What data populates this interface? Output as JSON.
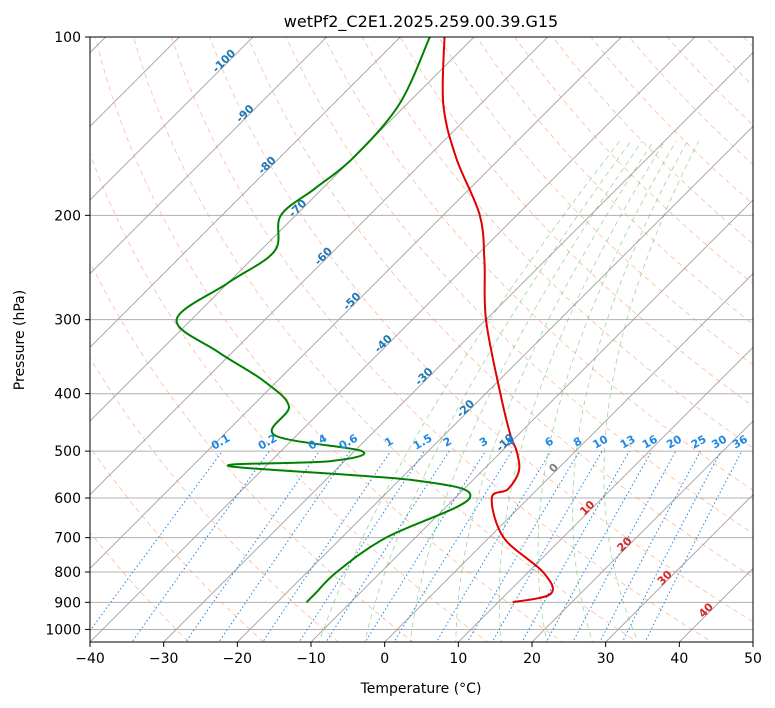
{
  "chart_data": {
    "type": "line",
    "title": "wetPf2_C2E1.2025.259.00.39.G15",
    "xlabel": "Temperature (°C)",
    "ylabel": "Pressure (hPa)",
    "xlim": [
      -40,
      50
    ],
    "ylim": [
      1050,
      100
    ],
    "y_scale": "log",
    "grid": true,
    "x_ticks": [
      "−40",
      "−30",
      "−20",
      "−10",
      "0",
      "10",
      "20",
      "30",
      "40",
      "50"
    ],
    "x_tick_values": [
      -40,
      -30,
      -20,
      -10,
      0,
      10,
      20,
      30,
      40,
      50
    ],
    "y_ticks": [
      "100",
      "200",
      "300",
      "400",
      "500",
      "600",
      "700",
      "800",
      "900",
      "1000"
    ],
    "y_tick_values": [
      100,
      200,
      300,
      400,
      500,
      600,
      700,
      800,
      900,
      1000
    ],
    "series": [
      {
        "color": "#e00000",
        "p": [
          100,
          130,
          160,
          200,
          240,
          300,
          400,
          470,
          500,
          540,
          580,
          600,
          700,
          800,
          870,
          900
        ],
        "T": [
          -74,
          -65,
          -56,
          -45,
          -38,
          -30,
          -18,
          -11,
          -8,
          -5,
          -4,
          -5,
          2,
          12,
          16,
          12
        ]
      },
      {
        "color": "#008000",
        "p": [
          100,
          130,
          160,
          180,
          200,
          230,
          260,
          300,
          340,
          380,
          420,
          470,
          500,
          520,
          530,
          560,
          600,
          700,
          800,
          870,
          900
        ],
        "T": [
          -76,
          -71,
          -70,
          -71,
          -72,
          -68,
          -70,
          -72,
          -62,
          -52,
          -45,
          -43,
          -29,
          -32,
          -45,
          -18,
          -8,
          -14,
          -16,
          -16,
          -16
        ]
      }
    ],
    "dry_adiabat_labels": [
      "-100",
      "-90",
      "-80",
      "-70",
      "-60",
      "-50",
      "-40",
      "-30",
      "-20",
      "-10",
      "0",
      "10",
      "20",
      "30",
      "40"
    ],
    "mixing_ratio_labels": [
      "0.1",
      "0.2",
      "0.4",
      "0.6",
      "1",
      "1.5",
      "2",
      "3",
      "4",
      "6",
      "8",
      "10",
      "13",
      "16",
      "20",
      "25",
      "30",
      "36"
    ],
    "colors": {
      "dry_adiabat_cold": "#1f77b4",
      "dry_adiabat_warm": "#d62728",
      "mixing_ratio": "#1e88e5",
      "moist_adiabat": "#2ca02c",
      "dry_adiabat_line": "#ff7f50",
      "isotherm": "#a0a0a0"
    }
  }
}
